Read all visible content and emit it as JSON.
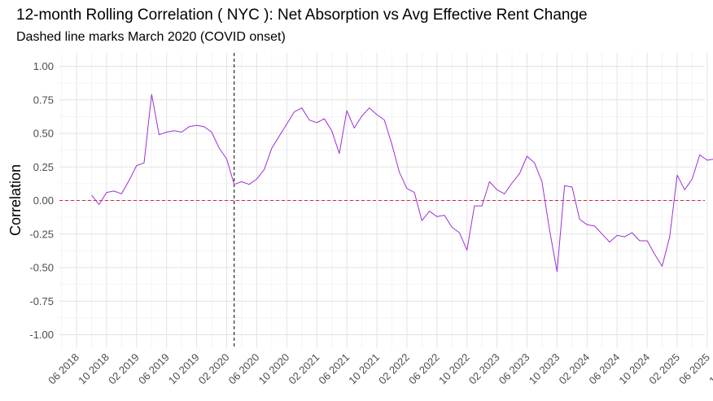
{
  "chart_data": {
    "type": "line",
    "title": "12-month Rolling Correlation ( NYC ): Net Absorption vs Avg Effective Rent Change",
    "subtitle": "Dashed line marks March 2020 (COVID onset)",
    "xlabel": "",
    "ylabel": "Correlation",
    "ylim": [
      -1.1,
      1.1
    ],
    "yticks": [
      1.0,
      0.75,
      0.5,
      0.25,
      0.0,
      -0.25,
      -0.5,
      -0.75,
      -1.0
    ],
    "ytick_labels": [
      "1.00",
      "0.75",
      "0.50",
      "0.25",
      "0.00",
      "-0.25",
      "-0.50",
      "-0.75",
      "-1.00"
    ],
    "xtick_labels": [
      "06 2018",
      "10 2018",
      "02 2019",
      "06 2019",
      "10 2019",
      "02 2020",
      "06 2020",
      "10 2020",
      "02 2021",
      "06 2021",
      "10 2021",
      "02 2022",
      "06 2022",
      "10 2022",
      "02 2023",
      "06 2023",
      "10 2023",
      "02 2024",
      "06 2024",
      "10 2024",
      "02 2025",
      "06 2025",
      "10 2025"
    ],
    "x_start": "2018-06",
    "months_per_tick": 4,
    "grid": true,
    "reference_lines": [
      {
        "axis": "y",
        "value": 0,
        "style": "dashed",
        "color": "#d7263d"
      },
      {
        "axis": "x",
        "value": "2020-03",
        "style": "dashed",
        "color": "#000000"
      }
    ],
    "series": [
      {
        "name": "Rolling correlation",
        "color": "#9b30d9",
        "start": "2018-08",
        "values": [
          0.04,
          -0.03,
          0.06,
          0.07,
          0.05,
          0.15,
          0.26,
          0.28,
          0.79,
          0.49,
          0.51,
          0.52,
          0.51,
          0.55,
          0.56,
          0.55,
          0.51,
          0.39,
          0.31,
          0.12,
          0.14,
          0.12,
          0.16,
          0.23,
          0.39,
          0.48,
          0.57,
          0.66,
          0.69,
          0.6,
          0.58,
          0.61,
          0.52,
          0.35,
          0.67,
          0.54,
          0.63,
          0.69,
          0.64,
          0.6,
          0.42,
          0.21,
          0.09,
          0.06,
          -0.15,
          -0.08,
          -0.12,
          -0.11,
          -0.2,
          -0.24,
          -0.37,
          -0.04,
          -0.04,
          0.14,
          0.08,
          0.05,
          0.13,
          0.2,
          0.33,
          0.28,
          0.14,
          -0.22,
          -0.53,
          0.11,
          0.1,
          -0.14,
          -0.18,
          -0.19,
          -0.25,
          -0.31,
          -0.26,
          -0.27,
          -0.24,
          -0.3,
          -0.3,
          -0.4,
          -0.49,
          -0.27,
          0.19,
          0.08,
          0.16,
          0.34,
          0.3,
          0.31,
          0.38
        ]
      }
    ]
  }
}
